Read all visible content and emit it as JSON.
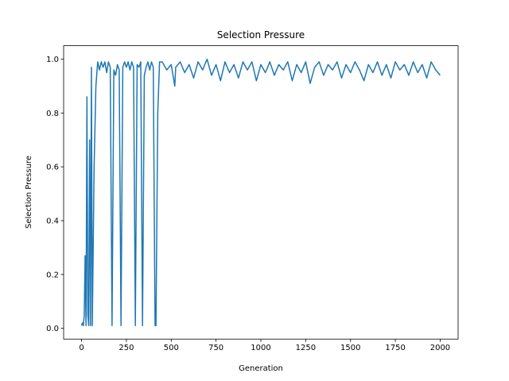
{
  "chart_data": {
    "type": "line",
    "title": "Selection Pressure",
    "xlabel": "Generation",
    "ylabel": "Selection Pressure",
    "color": "#1f77b4",
    "x": [
      0,
      5,
      10,
      15,
      20,
      25,
      30,
      35,
      40,
      45,
      50,
      55,
      60,
      70,
      80,
      90,
      100,
      110,
      120,
      130,
      140,
      150,
      160,
      170,
      180,
      190,
      200,
      210,
      220,
      230,
      240,
      250,
      260,
      270,
      280,
      290,
      300,
      310,
      320,
      330,
      340,
      350,
      360,
      370,
      380,
      390,
      400,
      410,
      415,
      425,
      435,
      450,
      475,
      500,
      520,
      525,
      550,
      575,
      600,
      625,
      650,
      675,
      700,
      725,
      750,
      775,
      800,
      825,
      850,
      875,
      900,
      925,
      950,
      975,
      1000,
      1025,
      1050,
      1075,
      1100,
      1125,
      1150,
      1175,
      1200,
      1225,
      1250,
      1275,
      1300,
      1325,
      1350,
      1375,
      1400,
      1425,
      1450,
      1475,
      1500,
      1525,
      1550,
      1575,
      1600,
      1625,
      1650,
      1675,
      1700,
      1725,
      1750,
      1775,
      1800,
      1825,
      1850,
      1875,
      1900,
      1925,
      1950,
      1975,
      2000
    ],
    "values": [
      0.01,
      0.02,
      0.01,
      0.05,
      0.27,
      0.01,
      0.86,
      0.05,
      0.01,
      0.7,
      0.01,
      0.97,
      0.01,
      0.6,
      0.9,
      0.99,
      0.96,
      0.99,
      0.97,
      0.99,
      0.95,
      0.99,
      0.97,
      0.01,
      0.96,
      0.94,
      0.98,
      0.96,
      0.01,
      0.97,
      0.99,
      0.97,
      0.99,
      0.96,
      0.99,
      0.97,
      0.01,
      0.98,
      0.97,
      0.99,
      0.01,
      0.94,
      0.97,
      0.99,
      0.96,
      0.99,
      0.97,
      0.01,
      0.01,
      0.8,
      0.99,
      0.99,
      0.96,
      0.98,
      0.9,
      0.97,
      0.99,
      0.95,
      0.98,
      0.93,
      0.99,
      0.96,
      1.0,
      0.94,
      0.98,
      0.92,
      0.99,
      0.95,
      0.98,
      0.93,
      0.99,
      0.96,
      0.99,
      0.92,
      0.98,
      0.95,
      0.99,
      0.94,
      0.98,
      0.96,
      0.99,
      0.92,
      0.98,
      0.95,
      0.99,
      0.91,
      0.97,
      0.99,
      0.94,
      0.98,
      0.96,
      0.99,
      0.93,
      0.98,
      0.95,
      0.99,
      0.96,
      0.92,
      0.98,
      0.95,
      0.99,
      0.94,
      0.98,
      0.93,
      0.99,
      0.96,
      0.98,
      0.94,
      0.99,
      0.95,
      0.98,
      0.93,
      0.99,
      0.96,
      0.94
    ],
    "xlim": [
      -100,
      2100
    ],
    "ylim": [
      -0.04,
      1.05
    ],
    "xticks": [
      0,
      250,
      500,
      750,
      1000,
      1250,
      1500,
      1750,
      2000
    ],
    "yticks": [
      {
        "value": 0,
        "label": "0.0"
      },
      0.2,
      0.4,
      0.6,
      0.8,
      {
        "value": 1,
        "label": "1.0"
      }
    ]
  }
}
